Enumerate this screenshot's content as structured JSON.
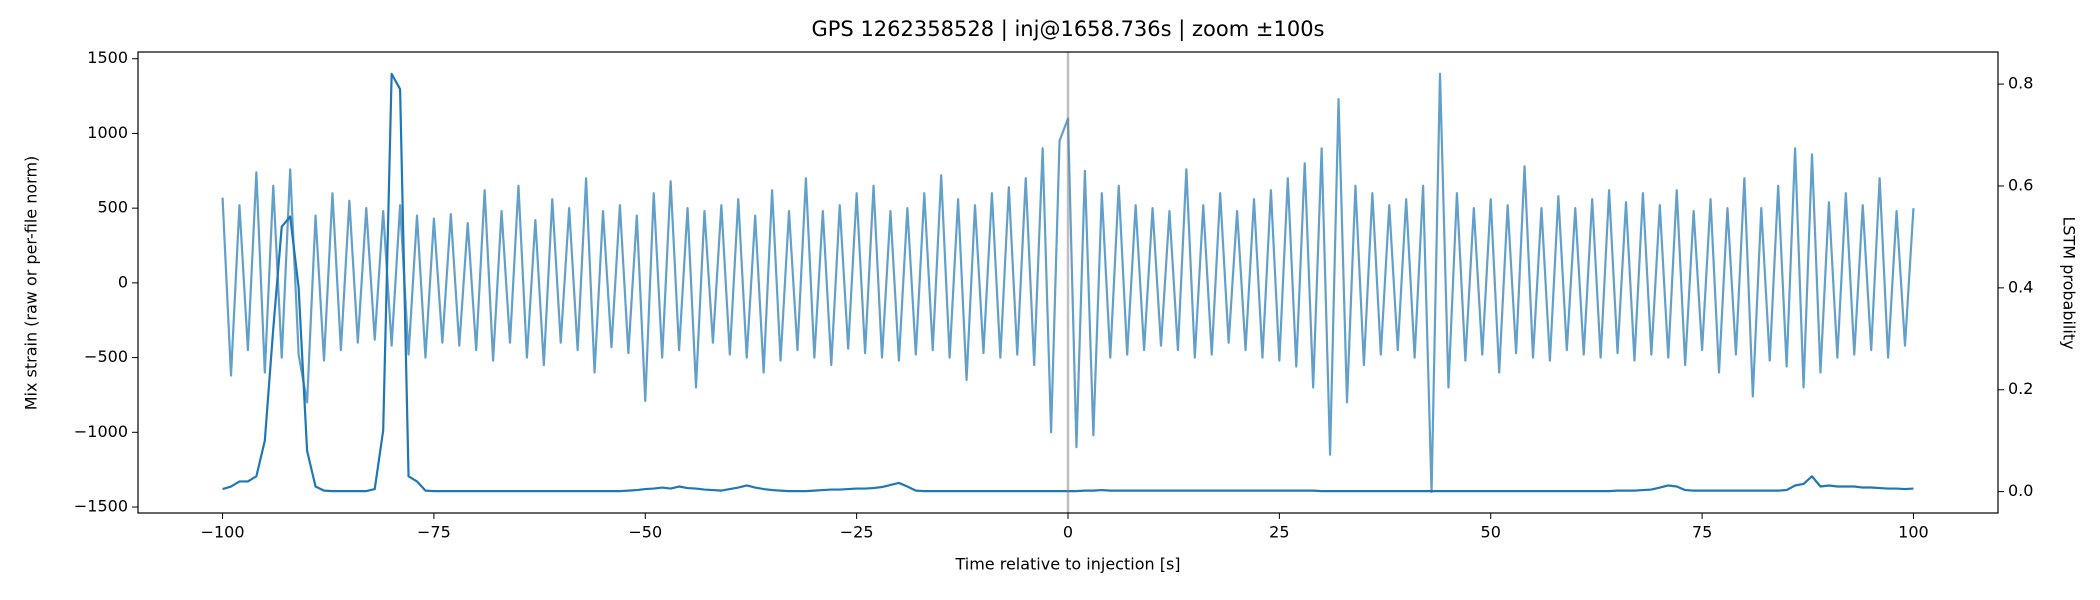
{
  "chart_data": {
    "type": "line",
    "title": "GPS 1262358528 | inj@1658.736s | zoom ±100s",
    "xlabel": "Time relative to injection [s]",
    "ylabel": "Mix strain (raw or per-file norm)",
    "y2label": "LSTM probability",
    "xlim": [
      -110,
      110
    ],
    "ylim": [
      -1540,
      1545
    ],
    "y2lim": [
      -0.042,
      0.863
    ],
    "xticks": [
      {
        "value": -100,
        "label": "−100"
      },
      {
        "value": -75,
        "label": "−75"
      },
      {
        "value": -50,
        "label": "−50"
      },
      {
        "value": -25,
        "label": "−25"
      },
      0,
      25,
      50,
      75,
      100
    ],
    "yticks": [
      {
        "value": -1500,
        "label": "−1500"
      },
      {
        "value": -1000,
        "label": "−1000"
      },
      {
        "value": -500,
        "label": "−500"
      },
      0,
      500,
      1000,
      1500
    ],
    "y2ticks": [
      {
        "value": 0,
        "label": "0.0"
      },
      0.2,
      0.4,
      0.6,
      0.8
    ],
    "vline_x": 0,
    "x": [
      -100,
      -99,
      -98,
      -97,
      -96,
      -95,
      -94,
      -93,
      -92,
      -91,
      -90,
      -89,
      -88,
      -87,
      -86,
      -85,
      -84,
      -83,
      -82,
      -81,
      -80,
      -79,
      -78,
      -77,
      -76,
      -75,
      -74,
      -73,
      -72,
      -71,
      -70,
      -69,
      -68,
      -67,
      -66,
      -65,
      -64,
      -63,
      -62,
      -61,
      -60,
      -59,
      -58,
      -57,
      -56,
      -55,
      -54,
      -53,
      -52,
      -51,
      -50,
      -49,
      -48,
      -47,
      -46,
      -45,
      -44,
      -43,
      -42,
      -41,
      -40,
      -39,
      -38,
      -37,
      -36,
      -35,
      -34,
      -33,
      -32,
      -31,
      -30,
      -29,
      -28,
      -27,
      -26,
      -25,
      -24,
      -23,
      -22,
      -21,
      -20,
      -19,
      -18,
      -17,
      -16,
      -15,
      -14,
      -13,
      -12,
      -11,
      -10,
      -9,
      -8,
      -7,
      -6,
      -5,
      -4,
      -3,
      -2,
      -1,
      0,
      1,
      2,
      3,
      4,
      5,
      6,
      7,
      8,
      9,
      10,
      11,
      12,
      13,
      14,
      15,
      16,
      17,
      18,
      19,
      20,
      21,
      22,
      23,
      24,
      25,
      26,
      27,
      28,
      29,
      30,
      31,
      32,
      33,
      34,
      35,
      36,
      37,
      38,
      39,
      40,
      41,
      42,
      43,
      44,
      45,
      46,
      47,
      48,
      49,
      50,
      51,
      52,
      53,
      54,
      55,
      56,
      57,
      58,
      59,
      60,
      61,
      62,
      63,
      64,
      65,
      66,
      67,
      68,
      69,
      70,
      71,
      72,
      73,
      74,
      75,
      76,
      77,
      78,
      79,
      80,
      81,
      82,
      83,
      84,
      85,
      86,
      87,
      88,
      89,
      90,
      91,
      92,
      93,
      94,
      95,
      96,
      97,
      98,
      99,
      100
    ],
    "series": [
      {
        "color": "#1f77b4",
        "opacity": 0.7,
        "values": [
          570,
          -620,
          520,
          -450,
          740,
          -600,
          650,
          -500,
          760,
          -480,
          -800,
          450,
          -520,
          600,
          -450,
          550,
          -400,
          500,
          -380,
          480,
          -420,
          520,
          -480,
          450,
          -500,
          430,
          -400,
          460,
          -420,
          400,
          -450,
          620,
          -520,
          480,
          -400,
          650,
          -500,
          420,
          -550,
          560,
          -400,
          500,
          -450,
          700,
          -600,
          480,
          -430,
          520,
          -470,
          450,
          -790,
          600,
          -500,
          680,
          -450,
          500,
          -700,
          480,
          -400,
          520,
          -480,
          560,
          -500,
          450,
          -600,
          620,
          -520,
          480,
          -450,
          700,
          -500,
          480,
          -550,
          520,
          -440,
          600,
          -470,
          650,
          -500,
          480,
          -520,
          500,
          -480,
          600,
          -450,
          720,
          -500,
          560,
          -650,
          520,
          -470,
          600,
          -500,
          640,
          -480,
          700,
          -550,
          900,
          -1000,
          950,
          1100,
          -1100,
          750,
          -1020,
          600,
          -500,
          650,
          -480,
          520,
          -450,
          500,
          -420,
          480,
          -450,
          760,
          -500,
          520,
          -480,
          600,
          -400,
          480,
          -450,
          560,
          -500,
          620,
          -520,
          700,
          -560,
          800,
          -700,
          900,
          -1150,
          1230,
          -800,
          650,
          -550,
          600,
          -480,
          520,
          -450,
          560,
          -500,
          650,
          -1400,
          1400,
          -700,
          600,
          -520,
          500,
          -480,
          560,
          -600,
          520,
          -470,
          780,
          -500,
          500,
          -520,
          580,
          -450,
          500,
          -480,
          560,
          -500,
          620,
          -470,
          540,
          -520,
          600,
          -480,
          520,
          -500,
          620,
          -550,
          480,
          -450,
          560,
          -600,
          500,
          -480,
          700,
          -760,
          500,
          -520,
          650,
          -560,
          900,
          -700,
          860,
          -600,
          540,
          -500,
          600,
          -480,
          520,
          -450,
          700,
          -500,
          480,
          -420,
          500
        ]
      },
      {
        "color": "#1f77b4",
        "axis": "y2",
        "values": [
          0.005,
          0.01,
          0.02,
          0.02,
          0.03,
          0.1,
          0.32,
          0.52,
          0.54,
          0.4,
          0.08,
          0.01,
          0.002,
          0.001,
          0.001,
          0.001,
          0.001,
          0.001,
          0.005,
          0.12,
          0.82,
          0.79,
          0.03,
          0.02,
          0.002,
          0.001,
          0.001,
          0.001,
          0.001,
          0.001,
          0.001,
          0.001,
          0.001,
          0.001,
          0.001,
          0.001,
          0.001,
          0.001,
          0.001,
          0.001,
          0.001,
          0.001,
          0.001,
          0.001,
          0.001,
          0.001,
          0.001,
          0.001,
          0.002,
          0.003,
          0.005,
          0.006,
          0.008,
          0.006,
          0.01,
          0.007,
          0.006,
          0.004,
          0.003,
          0.002,
          0.005,
          0.008,
          0.012,
          0.008,
          0.005,
          0.003,
          0.002,
          0.001,
          0.001,
          0.001,
          0.002,
          0.003,
          0.004,
          0.004,
          0.005,
          0.006,
          0.006,
          0.007,
          0.009,
          0.013,
          0.017,
          0.01,
          0.002,
          0.001,
          0.001,
          0.001,
          0.001,
          0.001,
          0.001,
          0.001,
          0.001,
          0.001,
          0.001,
          0.001,
          0.001,
          0.001,
          0.001,
          0.001,
          0.001,
          0.001,
          0.001,
          0.001,
          0.002,
          0.002,
          0.003,
          0.002,
          0.002,
          0.002,
          0.002,
          0.002,
          0.002,
          0.002,
          0.002,
          0.002,
          0.002,
          0.002,
          0.002,
          0.002,
          0.002,
          0.002,
          0.002,
          0.002,
          0.002,
          0.002,
          0.002,
          0.002,
          0.002,
          0.002,
          0.002,
          0.002,
          0.001,
          0.001,
          0.001,
          0.001,
          0.001,
          0.001,
          0.001,
          0.001,
          0.001,
          0.001,
          0.001,
          0.001,
          0.001,
          0.001,
          0.001,
          0.001,
          0.001,
          0.001,
          0.001,
          0.001,
          0.001,
          0.001,
          0.001,
          0.001,
          0.001,
          0.001,
          0.001,
          0.001,
          0.001,
          0.001,
          0.001,
          0.001,
          0.001,
          0.001,
          0.001,
          0.002,
          0.002,
          0.002,
          0.003,
          0.004,
          0.008,
          0.012,
          0.01,
          0.003,
          0.002,
          0.002,
          0.002,
          0.002,
          0.002,
          0.002,
          0.002,
          0.002,
          0.002,
          0.002,
          0.002,
          0.003,
          0.012,
          0.015,
          0.03,
          0.01,
          0.012,
          0.01,
          0.01,
          0.01,
          0.008,
          0.008,
          0.007,
          0.006,
          0.006,
          0.005,
          0.006
        ]
      }
    ]
  }
}
